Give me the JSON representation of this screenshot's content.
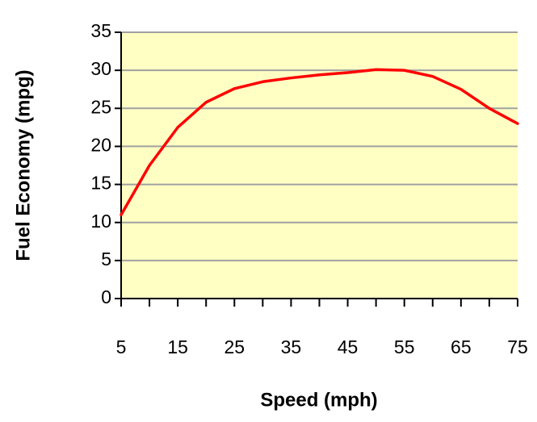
{
  "chart_data": {
    "type": "line",
    "x_label": "Speed (mph)",
    "y_label": "Fuel Economy (mpg)",
    "x": [
      5,
      10,
      15,
      20,
      25,
      30,
      35,
      40,
      45,
      50,
      55,
      60,
      65,
      70,
      75
    ],
    "series": [
      {
        "name": "Fuel Economy",
        "color": "#ff0000",
        "values": [
          11,
          17.5,
          22.5,
          25.8,
          27.6,
          28.5,
          29,
          29.4,
          29.7,
          30.1,
          30,
          29.2,
          27.5,
          25,
          23
        ]
      }
    ],
    "xlim": [
      5,
      75
    ],
    "xticks": [
      5,
      15,
      25,
      35,
      45,
      55,
      65,
      75
    ],
    "xminorticks": [
      10,
      20,
      30,
      40,
      50,
      60,
      70
    ],
    "ylim": [
      0,
      35
    ],
    "yticks": [
      0,
      5,
      10,
      15,
      20,
      25,
      30,
      35
    ],
    "grid": true,
    "plot_background": "#ffffc4"
  }
}
